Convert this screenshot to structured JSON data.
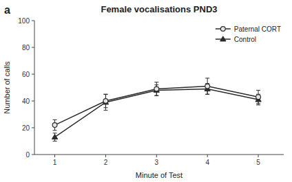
{
  "chart_data": {
    "type": "line",
    "title": "Female vocalisations PND3",
    "xlabel": "Minute of Test",
    "ylabel": "Number of calls",
    "annotations": [
      "a"
    ],
    "x": [
      1,
      2,
      3,
      4,
      5
    ],
    "series": [
      {
        "name": "Paternal CORT",
        "color": "#2b2b2b",
        "marker": "circle",
        "values": [
          22,
          40,
          49,
          51,
          43
        ],
        "errors": [
          4,
          5,
          5,
          6,
          5
        ]
      },
      {
        "name": "Control",
        "color": "#2b2b2b",
        "marker": "triangle",
        "values": [
          13,
          39,
          48,
          49,
          41
        ],
        "errors": [
          3,
          6,
          4,
          4,
          4
        ]
      }
    ],
    "xlim": [
      0.6,
      5.5
    ],
    "xticks": [
      1,
      2,
      3,
      4,
      5
    ],
    "ylim": [
      0,
      100
    ],
    "yticks": [
      0,
      20,
      40,
      60,
      80,
      100
    ],
    "grid": false,
    "legend": "upper right"
  }
}
